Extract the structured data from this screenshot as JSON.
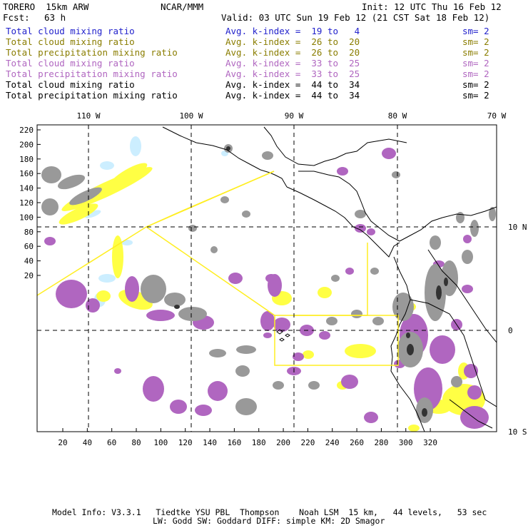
{
  "header": {
    "model": "TORERO  15km ARW",
    "center": "NCAR/MMM",
    "init": "Init: 12 UTC Thu 16 Feb 12",
    "fcst_label": "Fcst:",
    "fcst_value": "63 h",
    "valid": "Valid: 03 UTC Sun 19 Feb 12 (21 CST Sat 18 Feb 12)"
  },
  "legend": [
    {
      "field": "Total cloud mixing ratio",
      "kindex": "Avg. k-index =  19 to   4",
      "sm": "sm= 2",
      "color": "#2222cc"
    },
    {
      "field": "Total cloud mixing ratio",
      "kindex": "Avg. k-index =  26 to  20",
      "sm": "sm= 2",
      "color": "#8a7d00"
    },
    {
      "field": "Total precipitation mixing ratio",
      "kindex": "Avg. k-index =  26 to  20",
      "sm": "sm= 2",
      "color": "#8a7d00"
    },
    {
      "field": "Total cloud mixing ratio",
      "kindex": "Avg. k-index =  33 to  25",
      "sm": "sm= 2",
      "color": "#b066c0"
    },
    {
      "field": "Total precipitation mixing ratio",
      "kindex": "Avg. k-index =  33 to  25",
      "sm": "sm= 2",
      "color": "#b066c0"
    },
    {
      "field": "Total cloud mixing ratio",
      "kindex": "Avg. k-index =  44 to  34",
      "sm": "sm= 2",
      "color": "#000000"
    },
    {
      "field": "Total precipitation mixing ratio",
      "kindex": "Avg. k-index =  44 to  34",
      "sm": "sm= 2",
      "color": "#000000"
    }
  ],
  "map": {
    "top_lon_labels": [
      "110 W",
      "100 W",
      "90 W",
      "80 W",
      "70 W"
    ],
    "right_lat_labels": [
      "10 N",
      "0",
      "10 S"
    ],
    "left_grid_labels": [
      "220",
      "200",
      "180",
      "160",
      "140",
      "120",
      "100",
      "80",
      "60",
      "40",
      "20"
    ],
    "bottom_grid_labels": [
      "20",
      "40",
      "60",
      "80",
      "100",
      "120",
      "140",
      "160",
      "180",
      "200",
      "220",
      "240",
      "260",
      "280",
      "300",
      "320"
    ],
    "colors": {
      "light_blue": "#cceeff",
      "yellow": "#ffff44",
      "purple": "#b066c0",
      "gray": "#999999",
      "dark_gray": "#333333",
      "coast": "#000000",
      "box_outline": "#ffee22",
      "grid_line": "#000000"
    }
  },
  "footer": {
    "line1": "Model Info: V3.3.1   Tiedtke YSU PBL  Thompson    Noah LSM  15 km,   44 levels,   53 sec",
    "line2": "LW: Godd SW: Goddard DIFF: simple KM: 2D Smagor"
  }
}
